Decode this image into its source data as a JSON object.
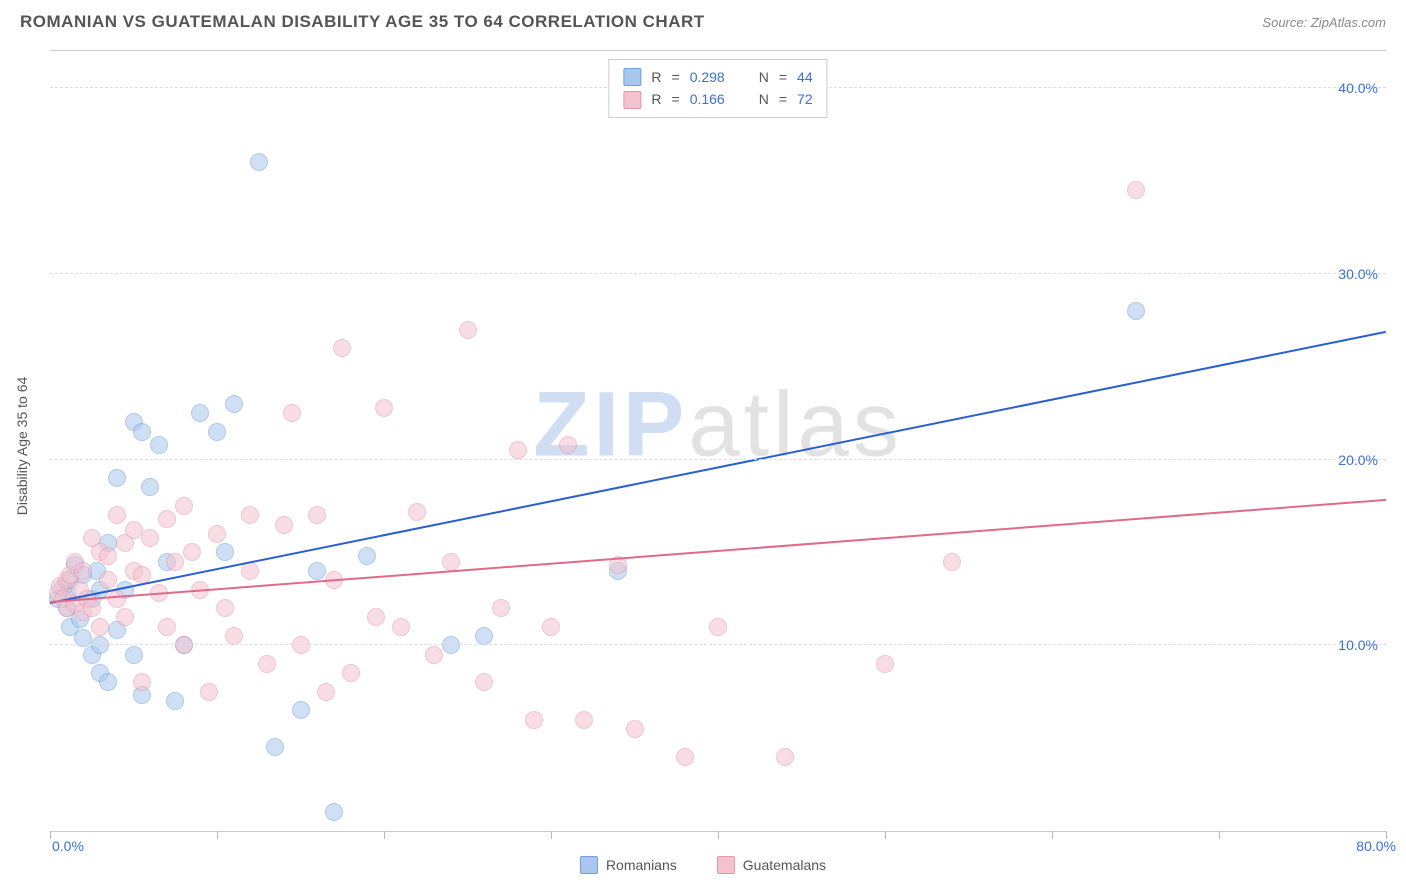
{
  "header": {
    "title": "ROMANIAN VS GUATEMALAN DISABILITY AGE 35 TO 64 CORRELATION CHART",
    "source_label": "Source:",
    "source_name": "ZipAtlas.com"
  },
  "watermark": {
    "part1": "ZIP",
    "part2": "atlas"
  },
  "chart": {
    "type": "scatter",
    "y_axis_title": "Disability Age 35 to 64",
    "background_color": "#ffffff",
    "grid_color": "#dddddd",
    "axis_color": "#cccccc",
    "xlim": [
      0,
      80
    ],
    "ylim": [
      0,
      42
    ],
    "x_ticks": [
      0,
      10,
      20,
      30,
      40,
      50,
      60,
      70,
      80
    ],
    "x_tick_labels": {
      "0": "0.0%",
      "80": "80.0%"
    },
    "y_gridlines": [
      10,
      20,
      30,
      40
    ],
    "y_tick_labels": {
      "10": "10.0%",
      "20": "20.0%",
      "30": "30.0%",
      "40": "40.0%"
    },
    "tick_label_color": "#3b6fd6",
    "tick_label_fontsize": 14,
    "marker_radius": 8,
    "marker_opacity": 0.55,
    "series": [
      {
        "id": "romanians",
        "label": "Romanians",
        "fill_color": "#a9c7ee",
        "stroke_color": "#6f9fdc",
        "line_color": "#2a5fd0",
        "r_value": "0.298",
        "n_value": "44",
        "trend": {
          "x1": 0,
          "y1": 12.2,
          "x2": 80,
          "y2": 26.8
        },
        "points": [
          [
            0.5,
            12.5
          ],
          [
            0.8,
            13.1
          ],
          [
            1.0,
            12.8
          ],
          [
            1.0,
            12.0
          ],
          [
            1.2,
            11.0
          ],
          [
            1.2,
            13.5
          ],
          [
            1.5,
            14.3
          ],
          [
            1.8,
            11.4
          ],
          [
            2.0,
            10.4
          ],
          [
            2.0,
            13.8
          ],
          [
            2.5,
            9.5
          ],
          [
            2.5,
            12.5
          ],
          [
            2.8,
            14.0
          ],
          [
            3.0,
            8.5
          ],
          [
            3.0,
            10.0
          ],
          [
            3.0,
            13.0
          ],
          [
            3.5,
            8.0
          ],
          [
            3.5,
            15.5
          ],
          [
            4.0,
            19.0
          ],
          [
            4.0,
            10.8
          ],
          [
            4.5,
            13.0
          ],
          [
            5.0,
            9.5
          ],
          [
            5.0,
            22.0
          ],
          [
            5.5,
            7.3
          ],
          [
            5.5,
            21.5
          ],
          [
            6.0,
            18.5
          ],
          [
            6.5,
            20.8
          ],
          [
            7.0,
            14.5
          ],
          [
            7.5,
            7.0
          ],
          [
            8.0,
            10.0
          ],
          [
            9.0,
            22.5
          ],
          [
            10.0,
            21.5
          ],
          [
            10.5,
            15.0
          ],
          [
            11.0,
            23.0
          ],
          [
            12.5,
            36.0
          ],
          [
            13.5,
            4.5
          ],
          [
            15.0,
            6.5
          ],
          [
            16.0,
            14.0
          ],
          [
            17.0,
            1.0
          ],
          [
            19.0,
            14.8
          ],
          [
            24.0,
            10.0
          ],
          [
            26.0,
            10.5
          ],
          [
            34.0,
            14.0
          ],
          [
            65.0,
            28.0
          ]
        ]
      },
      {
        "id": "guatemalans",
        "label": "Guatemalans",
        "fill_color": "#f4c2cf",
        "stroke_color": "#e497ab",
        "line_color": "#e06a8a",
        "r_value": "0.166",
        "n_value": "72",
        "trend": {
          "x1": 0,
          "y1": 12.3,
          "x2": 80,
          "y2": 17.8
        },
        "points": [
          [
            0.5,
            12.8
          ],
          [
            0.6,
            13.2
          ],
          [
            0.8,
            12.5
          ],
          [
            1.0,
            13.5
          ],
          [
            1.0,
            12.0
          ],
          [
            1.2,
            13.8
          ],
          [
            1.5,
            12.2
          ],
          [
            1.5,
            14.5
          ],
          [
            1.8,
            13.0
          ],
          [
            2.0,
            11.8
          ],
          [
            2.0,
            14.0
          ],
          [
            2.2,
            12.5
          ],
          [
            2.5,
            15.8
          ],
          [
            2.5,
            12.0
          ],
          [
            3.0,
            15.0
          ],
          [
            3.0,
            11.0
          ],
          [
            3.5,
            13.5
          ],
          [
            3.5,
            14.8
          ],
          [
            4.0,
            17.0
          ],
          [
            4.0,
            12.5
          ],
          [
            4.5,
            15.5
          ],
          [
            4.5,
            11.5
          ],
          [
            5.0,
            14.0
          ],
          [
            5.0,
            16.2
          ],
          [
            5.5,
            13.8
          ],
          [
            5.5,
            8.0
          ],
          [
            6.0,
            15.8
          ],
          [
            6.5,
            12.8
          ],
          [
            7.0,
            16.8
          ],
          [
            7.0,
            11.0
          ],
          [
            7.5,
            14.5
          ],
          [
            8.0,
            17.5
          ],
          [
            8.0,
            10.0
          ],
          [
            8.5,
            15.0
          ],
          [
            9.0,
            13.0
          ],
          [
            9.5,
            7.5
          ],
          [
            10.0,
            16.0
          ],
          [
            10.5,
            12.0
          ],
          [
            11.0,
            10.5
          ],
          [
            12.0,
            17.0
          ],
          [
            12.0,
            14.0
          ],
          [
            13.0,
            9.0
          ],
          [
            14.0,
            16.5
          ],
          [
            14.5,
            22.5
          ],
          [
            15.0,
            10.0
          ],
          [
            16.0,
            17.0
          ],
          [
            16.5,
            7.5
          ],
          [
            17.0,
            13.5
          ],
          [
            17.5,
            26.0
          ],
          [
            18.0,
            8.5
          ],
          [
            19.5,
            11.5
          ],
          [
            20.0,
            22.8
          ],
          [
            21.0,
            11.0
          ],
          [
            22.0,
            17.2
          ],
          [
            23.0,
            9.5
          ],
          [
            24.0,
            14.5
          ],
          [
            25.0,
            27.0
          ],
          [
            26.0,
            8.0
          ],
          [
            27.0,
            12.0
          ],
          [
            28.0,
            20.5
          ],
          [
            29.0,
            6.0
          ],
          [
            30.0,
            11.0
          ],
          [
            31.0,
            20.8
          ],
          [
            32.0,
            6.0
          ],
          [
            34.0,
            14.3
          ],
          [
            35.0,
            5.5
          ],
          [
            38.0,
            4.0
          ],
          [
            40.0,
            11.0
          ],
          [
            44.0,
            4.0
          ],
          [
            50.0,
            9.0
          ],
          [
            54.0,
            14.5
          ],
          [
            65.0,
            34.5
          ]
        ]
      }
    ]
  },
  "legend_top": {
    "r_label": "R",
    "n_label": "N",
    "eq": "="
  },
  "legend_bottom": {}
}
